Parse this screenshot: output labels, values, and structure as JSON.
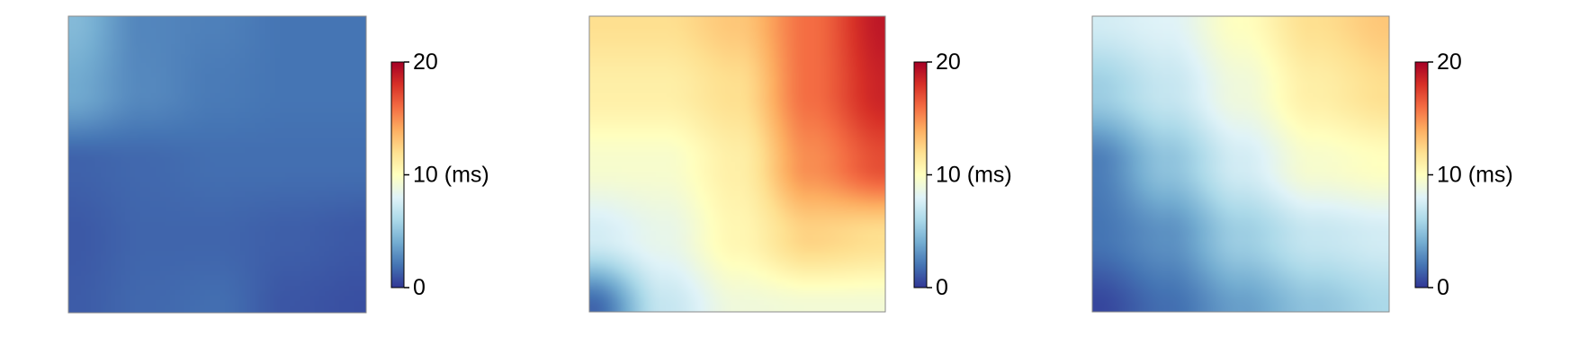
{
  "colormap": {
    "name": "RdYlBu_r",
    "stops": [
      {
        "value": 0.0,
        "color": "#313695"
      },
      {
        "value": 0.1,
        "color": "#4575b4"
      },
      {
        "value": 0.2,
        "color": "#74add1"
      },
      {
        "value": 0.3,
        "color": "#abd9e9"
      },
      {
        "value": 0.4,
        "color": "#e0f3f8"
      },
      {
        "value": 0.5,
        "color": "#ffffbf"
      },
      {
        "value": 0.6,
        "color": "#fee090"
      },
      {
        "value": 0.7,
        "color": "#fdae61"
      },
      {
        "value": 0.8,
        "color": "#f46d43"
      },
      {
        "value": 0.9,
        "color": "#d73027"
      },
      {
        "value": 1.0,
        "color": "#a50026"
      }
    ]
  },
  "chart_data": [
    {
      "type": "heatmap",
      "value_range": [
        0,
        20
      ],
      "colorbar_ticks": [
        "0",
        "10 (ms)",
        "20"
      ],
      "colorbar_tick_values": [
        0,
        10,
        20
      ],
      "grid_x": [
        0,
        0.25,
        0.5,
        0.75,
        1
      ],
      "grid_y": [
        0,
        0.25,
        0.5,
        0.75,
        1
      ],
      "values": [
        [
          4.6,
          2.6,
          2.4,
          2.0,
          2.0
        ],
        [
          3.9,
          2.7,
          2.2,
          2.0,
          2.0
        ],
        [
          1.4,
          1.6,
          1.8,
          1.8,
          1.8
        ],
        [
          1.1,
          1.5,
          1.5,
          1.3,
          1.1
        ],
        [
          1.2,
          1.6,
          1.8,
          1.0,
          0.8
        ]
      ]
    },
    {
      "type": "heatmap",
      "value_range": [
        0,
        20
      ],
      "colorbar_ticks": [
        "0",
        "10 (ms)",
        "20"
      ],
      "colorbar_tick_values": [
        0,
        10,
        20
      ],
      "grid_x": [
        0,
        0.25,
        0.5,
        0.75,
        1
      ],
      "grid_y": [
        0,
        0.25,
        0.5,
        0.75,
        1
      ],
      "values": [
        [
          12,
          12,
          13,
          16,
          19
        ],
        [
          11,
          11,
          12,
          16,
          18.5
        ],
        [
          9.5,
          9.5,
          11,
          15,
          17
        ],
        [
          7.5,
          8.5,
          10.5,
          12.5,
          12
        ],
        [
          1.5,
          7.0,
          9.0,
          9.2,
          9.2
        ]
      ]
    },
    {
      "type": "heatmap",
      "value_range": [
        0,
        20
      ],
      "colorbar_ticks": [
        "0",
        "10 (ms)",
        "20"
      ],
      "colorbar_tick_values": [
        0,
        10,
        20
      ],
      "grid_x": [
        0,
        0.25,
        0.5,
        0.75,
        1
      ],
      "grid_y": [
        0,
        0.25,
        0.5,
        0.75,
        1
      ],
      "values": [
        [
          7.5,
          8.0,
          10.0,
          12.0,
          13.0
        ],
        [
          5.5,
          7.0,
          9.0,
          11.0,
          12.0
        ],
        [
          2.3,
          5.0,
          7.5,
          9.5,
          10.0
        ],
        [
          2.0,
          3.0,
          5.5,
          7.0,
          7.5
        ],
        [
          0.5,
          1.8,
          3.5,
          5.0,
          6.0
        ]
      ]
    }
  ]
}
